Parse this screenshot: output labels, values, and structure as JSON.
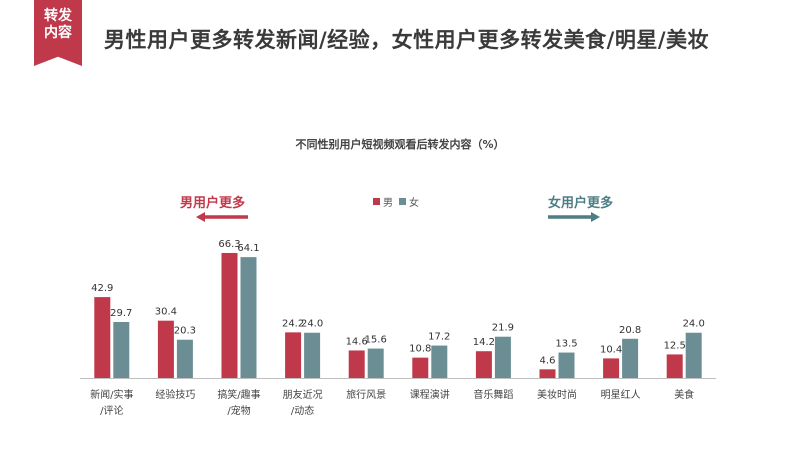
{
  "header": {
    "badge_line1": "转发",
    "badge_line2": "内容",
    "title": "男性用户更多转发新闻/经验，女性用户更多转发美食/明星/美妆"
  },
  "annotations": {
    "male_more": "男用户更多",
    "female_more": "女用户更多"
  },
  "colors": {
    "male": "#c0394b",
    "female": "#6b8e95",
    "axis": "#bfbfbf"
  },
  "chart_data": {
    "type": "bar",
    "title": "不同性别用户短视频观看后转发内容（%）",
    "legend_position": "top-center",
    "categories": [
      [
        "新闻/实事",
        "/评论"
      ],
      [
        "经验技巧"
      ],
      [
        "搞笑/趣事",
        "/宠物"
      ],
      [
        "朋友近况",
        "/动态"
      ],
      [
        "旅行风景"
      ],
      [
        "课程演讲"
      ],
      [
        "音乐舞蹈"
      ],
      [
        "美妆时尚"
      ],
      [
        "明星红人"
      ],
      [
        "美食"
      ]
    ],
    "series": [
      {
        "name": "男",
        "values": [
          42.9,
          30.4,
          66.3,
          24.2,
          14.6,
          10.8,
          14.2,
          4.6,
          10.4,
          12.5
        ]
      },
      {
        "name": "女",
        "values": [
          29.7,
          20.3,
          64.1,
          24.0,
          15.6,
          17.2,
          21.9,
          13.5,
          20.8,
          24.0
        ]
      }
    ],
    "ylim": [
      0,
      70
    ],
    "grid": false
  }
}
